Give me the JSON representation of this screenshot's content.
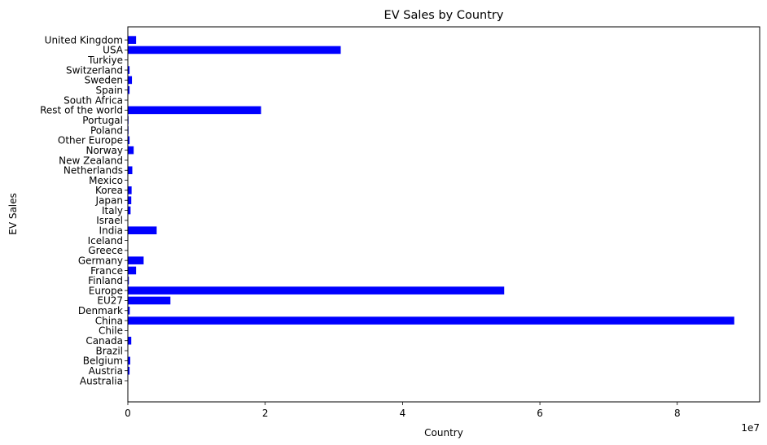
{
  "chart_data": {
    "type": "bar",
    "orientation": "horizontal",
    "title": "EV Sales by Country",
    "xlabel": "Country",
    "ylabel": "EV Sales",
    "x_scale_label": "1e7",
    "xlim": [
      0,
      92000000
    ],
    "xticks": [
      0,
      20000000,
      40000000,
      60000000,
      80000000
    ],
    "xtick_labels": [
      "0",
      "2",
      "4",
      "6",
      "8"
    ],
    "grid": false,
    "bar_color": "#0000ff",
    "categories": [
      "Australia",
      "Austria",
      "Belgium",
      "Brazil",
      "Canada",
      "Chile",
      "China",
      "Denmark",
      "EU27",
      "Europe",
      "Finland",
      "France",
      "Germany",
      "Greece",
      "Iceland",
      "India",
      "Israel",
      "Italy",
      "Japan",
      "Korea",
      "Mexico",
      "Netherlands",
      "New Zealand",
      "Norway",
      "Other Europe",
      "Poland",
      "Portugal",
      "Rest of the world",
      "South Africa",
      "Spain",
      "Sweden",
      "Switzerland",
      "Turkiye",
      "USA",
      "United Kingdom"
    ],
    "values": [
      60000,
      250000,
      350000,
      60000,
      500000,
      10000,
      88300000,
      280000,
      6200000,
      54800000,
      150000,
      1200000,
      2300000,
      10000,
      40000,
      4200000,
      40000,
      400000,
      500000,
      550000,
      10000,
      650000,
      60000,
      850000,
      250000,
      100000,
      100000,
      19400000,
      5000,
      250000,
      600000,
      250000,
      10000,
      31000000,
      1200000
    ]
  }
}
